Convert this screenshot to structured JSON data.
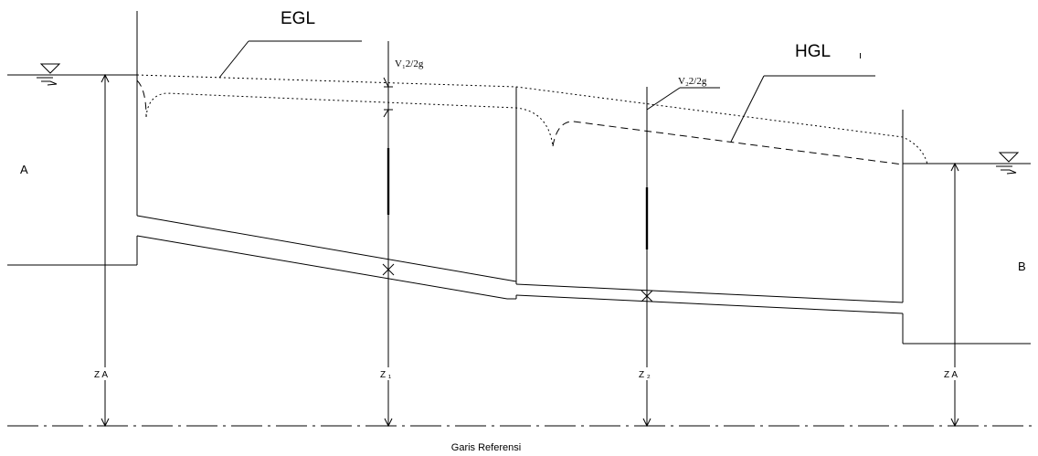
{
  "labels": {
    "egl": "EGL",
    "hgl": "HGL",
    "hgl_tick": "ı",
    "reservoir_a": "A",
    "reservoir_b": "B",
    "velocity_head_1": "V₁2/2g",
    "velocity_head_2": "V₂2/2g",
    "elevation_a_left": "Z A",
    "elevation_1": "Z ₁",
    "elevation_2": "Z ₂",
    "elevation_a_right": "Z A",
    "datum": "Garis Referensi"
  }
}
